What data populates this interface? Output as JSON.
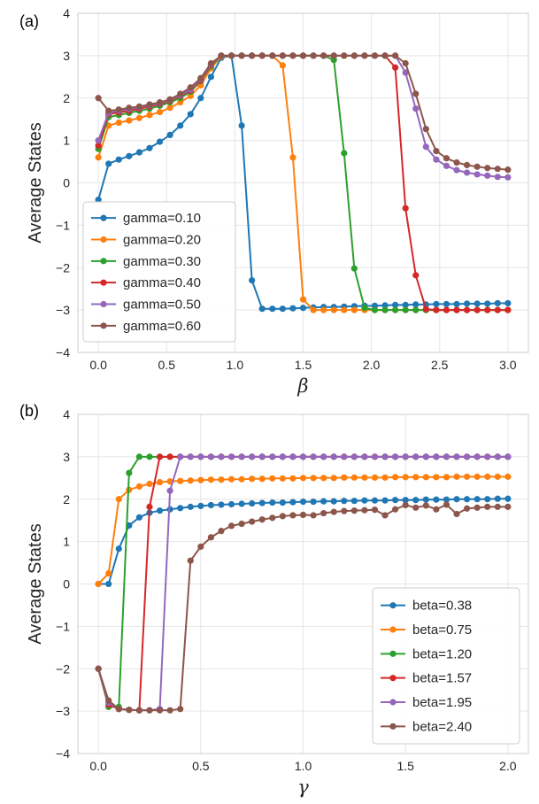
{
  "chart_data": [
    {
      "type": "line",
      "panel_label": "(a)",
      "xlabel": "β",
      "ylabel": "Average States",
      "xlim": [
        -0.15,
        3.15
      ],
      "ylim": [
        -4,
        4
      ],
      "xticks": [
        0.0,
        0.5,
        1.0,
        1.5,
        2.0,
        2.5,
        3.0
      ],
      "xtick_labels": [
        "0.0",
        "0.5",
        "1.0",
        "1.5",
        "2.0",
        "2.5",
        "3.0"
      ],
      "yticks": [
        -4,
        -3,
        -2,
        -1,
        0,
        1,
        2,
        3,
        4
      ],
      "ytick_labels": [
        "−4",
        "−3",
        "−2",
        "−1",
        "0",
        "1",
        "2",
        "3",
        "4"
      ],
      "grid": true,
      "legend_position": "lower-left",
      "x": [
        0.0,
        0.075,
        0.15,
        0.225,
        0.3,
        0.375,
        0.45,
        0.525,
        0.6,
        0.675,
        0.75,
        0.825,
        0.9,
        0.975,
        1.05,
        1.125,
        1.2,
        1.275,
        1.35,
        1.425,
        1.5,
        1.575,
        1.65,
        1.725,
        1.8,
        1.875,
        1.95,
        2.025,
        2.1,
        2.175,
        2.25,
        2.325,
        2.4,
        2.475,
        2.55,
        2.625,
        2.7,
        2.775,
        2.85,
        2.925,
        3.0
      ],
      "series": [
        {
          "name": "gamma=0.10",
          "color": "#1f77b4",
          "values": [
            -0.4,
            0.45,
            0.55,
            0.63,
            0.72,
            0.82,
            0.97,
            1.13,
            1.35,
            1.62,
            2.0,
            2.5,
            2.95,
            3.0,
            1.35,
            -2.3,
            -2.97,
            -2.97,
            -2.97,
            -2.96,
            -2.95,
            -2.94,
            -2.93,
            -2.93,
            -2.92,
            -2.91,
            -2.9,
            -2.9,
            -2.89,
            -2.88,
            -2.88,
            -2.87,
            -2.87,
            -2.86,
            -2.86,
            -2.86,
            -2.85,
            -2.85,
            -2.85,
            -2.84,
            -2.84
          ]
        },
        {
          "name": "gamma=0.20",
          "color": "#ff7f0e",
          "values": [
            0.6,
            1.35,
            1.42,
            1.47,
            1.53,
            1.6,
            1.67,
            1.77,
            1.9,
            2.05,
            2.3,
            2.7,
            2.98,
            3.0,
            3.0,
            3.0,
            3.0,
            3.0,
            2.77,
            0.6,
            -2.75,
            -3.0,
            -3.0,
            -3.0,
            -3.0,
            -3.0,
            -3.0,
            -3.0,
            -3.0,
            -3.0,
            -3.0,
            -3.0,
            -3.0,
            -3.0,
            -3.0,
            -3.0,
            -3.0,
            -3.0,
            -3.0,
            -3.0,
            -3.0
          ]
        },
        {
          "name": "gamma=0.30",
          "color": "#2ca02c",
          "values": [
            0.8,
            1.55,
            1.6,
            1.65,
            1.7,
            1.75,
            1.82,
            1.9,
            2.0,
            2.15,
            2.4,
            2.75,
            3.0,
            3.0,
            3.0,
            3.0,
            3.0,
            3.0,
            3.0,
            3.0,
            3.0,
            3.0,
            3.0,
            2.9,
            0.7,
            -2.02,
            -2.95,
            -3.0,
            -3.0,
            -3.0,
            -3.0,
            -3.0,
            -3.0,
            -3.0,
            -3.0,
            -3.0,
            -3.0,
            -3.0,
            -3.0,
            -3.0,
            -3.0
          ]
        },
        {
          "name": "gamma=0.40",
          "color": "#d62728",
          "values": [
            0.88,
            1.62,
            1.66,
            1.7,
            1.75,
            1.8,
            1.86,
            1.94,
            2.05,
            2.18,
            2.42,
            2.78,
            3.0,
            3.0,
            3.0,
            3.0,
            3.0,
            3.0,
            3.0,
            3.0,
            3.0,
            3.0,
            3.0,
            3.0,
            3.0,
            3.0,
            3.0,
            3.0,
            3.0,
            2.72,
            -0.6,
            -2.18,
            -2.98,
            -3.0,
            -3.0,
            -3.0,
            -3.0,
            -3.0,
            -3.0,
            -3.0,
            -3.0
          ]
        },
        {
          "name": "gamma=0.50",
          "color": "#9467bd",
          "values": [
            1.0,
            1.65,
            1.7,
            1.74,
            1.78,
            1.83,
            1.88,
            1.96,
            2.07,
            2.2,
            2.45,
            2.8,
            3.0,
            3.0,
            3.0,
            3.0,
            3.0,
            3.0,
            3.0,
            3.0,
            3.0,
            3.0,
            3.0,
            3.0,
            3.0,
            3.0,
            3.0,
            3.0,
            3.0,
            3.0,
            2.6,
            1.75,
            0.85,
            0.55,
            0.4,
            0.3,
            0.24,
            0.2,
            0.17,
            0.14,
            0.13
          ]
        },
        {
          "name": "gamma=0.60",
          "color": "#8c564b",
          "values": [
            2.0,
            1.7,
            1.73,
            1.77,
            1.8,
            1.85,
            1.9,
            1.97,
            2.1,
            2.25,
            2.47,
            2.82,
            3.0,
            3.0,
            3.0,
            3.0,
            3.0,
            3.0,
            3.0,
            3.0,
            3.0,
            3.0,
            3.0,
            3.0,
            3.0,
            3.0,
            3.0,
            3.0,
            3.0,
            3.0,
            2.82,
            2.1,
            1.27,
            0.75,
            0.58,
            0.48,
            0.42,
            0.38,
            0.35,
            0.33,
            0.31
          ]
        }
      ]
    },
    {
      "type": "line",
      "panel_label": "(b)",
      "xlabel": "γ",
      "ylabel": "Average States",
      "xlim": [
        -0.1,
        2.1
      ],
      "ylim": [
        -4,
        4
      ],
      "xticks": [
        0.0,
        0.5,
        1.0,
        1.5,
        2.0
      ],
      "xtick_labels": [
        "0.0",
        "0.5",
        "1.0",
        "1.5",
        "2.0"
      ],
      "yticks": [
        -4,
        -3,
        -2,
        -1,
        0,
        1,
        2,
        3,
        4
      ],
      "ytick_labels": [
        "−4",
        "−3",
        "−2",
        "−1",
        "0",
        "1",
        "2",
        "3",
        "4"
      ],
      "grid": true,
      "legend_position": "lower-right",
      "x": [
        0.0,
        0.05,
        0.1,
        0.15,
        0.2,
        0.25,
        0.3,
        0.35,
        0.4,
        0.45,
        0.5,
        0.55,
        0.6,
        0.65,
        0.7,
        0.75,
        0.8,
        0.85,
        0.9,
        0.95,
        1.0,
        1.05,
        1.1,
        1.15,
        1.2,
        1.25,
        1.3,
        1.35,
        1.4,
        1.45,
        1.5,
        1.55,
        1.6,
        1.65,
        1.7,
        1.75,
        1.8,
        1.85,
        1.9,
        1.95,
        2.0
      ],
      "series": [
        {
          "name": "beta=0.38",
          "color": "#1f77b4",
          "values": [
            0.0,
            0.0,
            0.83,
            1.38,
            1.57,
            1.68,
            1.73,
            1.76,
            1.79,
            1.82,
            1.84,
            1.86,
            1.87,
            1.88,
            1.89,
            1.9,
            1.91,
            1.92,
            1.92,
            1.93,
            1.94,
            1.94,
            1.95,
            1.95,
            1.96,
            1.96,
            1.97,
            1.97,
            1.97,
            1.98,
            1.98,
            1.98,
            1.99,
            1.99,
            1.99,
            2.0,
            2.0,
            2.0,
            2.0,
            2.01,
            2.01
          ]
        },
        {
          "name": "beta=0.75",
          "color": "#ff7f0e",
          "values": [
            0.0,
            0.25,
            2.0,
            2.22,
            2.3,
            2.36,
            2.4,
            2.42,
            2.43,
            2.44,
            2.45,
            2.46,
            2.46,
            2.47,
            2.47,
            2.48,
            2.48,
            2.49,
            2.49,
            2.49,
            2.5,
            2.5,
            2.5,
            2.5,
            2.51,
            2.51,
            2.51,
            2.51,
            2.51,
            2.52,
            2.52,
            2.52,
            2.52,
            2.52,
            2.52,
            2.53,
            2.53,
            2.53,
            2.53,
            2.53,
            2.53
          ]
        },
        {
          "name": "beta=1.20",
          "color": "#2ca02c",
          "values": [
            -2.0,
            -2.9,
            -2.9,
            2.62,
            3.0,
            3.0,
            3.0,
            3.0,
            3.0,
            3.0,
            3.0,
            3.0,
            3.0,
            3.0,
            3.0,
            3.0,
            3.0,
            3.0,
            3.0,
            3.0,
            3.0,
            3.0,
            3.0,
            3.0,
            3.0,
            3.0,
            3.0,
            3.0,
            3.0,
            3.0,
            3.0,
            3.0,
            3.0,
            3.0,
            3.0,
            3.0,
            3.0,
            3.0,
            3.0,
            3.0,
            3.0
          ]
        },
        {
          "name": "beta=1.57",
          "color": "#d62728",
          "values": [
            -2.0,
            -2.85,
            -2.95,
            -2.97,
            -2.98,
            1.82,
            3.0,
            3.0,
            3.0,
            3.0,
            3.0,
            3.0,
            3.0,
            3.0,
            3.0,
            3.0,
            3.0,
            3.0,
            3.0,
            3.0,
            3.0,
            3.0,
            3.0,
            3.0,
            3.0,
            3.0,
            3.0,
            3.0,
            3.0,
            3.0,
            3.0,
            3.0,
            3.0,
            3.0,
            3.0,
            3.0,
            3.0,
            3.0,
            3.0,
            3.0,
            3.0
          ]
        },
        {
          "name": "beta=1.95",
          "color": "#9467bd",
          "values": [
            -2.0,
            -2.8,
            -2.95,
            -2.97,
            -2.98,
            -2.98,
            -2.95,
            2.2,
            3.0,
            3.0,
            3.0,
            3.0,
            3.0,
            3.0,
            3.0,
            3.0,
            3.0,
            3.0,
            3.0,
            3.0,
            3.0,
            3.0,
            3.0,
            3.0,
            3.0,
            3.0,
            3.0,
            3.0,
            3.0,
            3.0,
            3.0,
            3.0,
            3.0,
            3.0,
            3.0,
            3.0,
            3.0,
            3.0,
            3.0,
            3.0,
            3.0
          ]
        },
        {
          "name": "beta=2.40",
          "color": "#8c564b",
          "values": [
            -2.0,
            -2.75,
            -2.95,
            -2.97,
            -2.98,
            -2.98,
            -2.98,
            -2.98,
            -2.95,
            0.55,
            0.88,
            1.1,
            1.25,
            1.37,
            1.42,
            1.47,
            1.52,
            1.56,
            1.6,
            1.62,
            1.63,
            1.62,
            1.67,
            1.7,
            1.72,
            1.73,
            1.74,
            1.75,
            1.62,
            1.76,
            1.86,
            1.8,
            1.85,
            1.76,
            1.87,
            1.65,
            1.78,
            1.8,
            1.82,
            1.82,
            1.82
          ]
        }
      ]
    }
  ]
}
